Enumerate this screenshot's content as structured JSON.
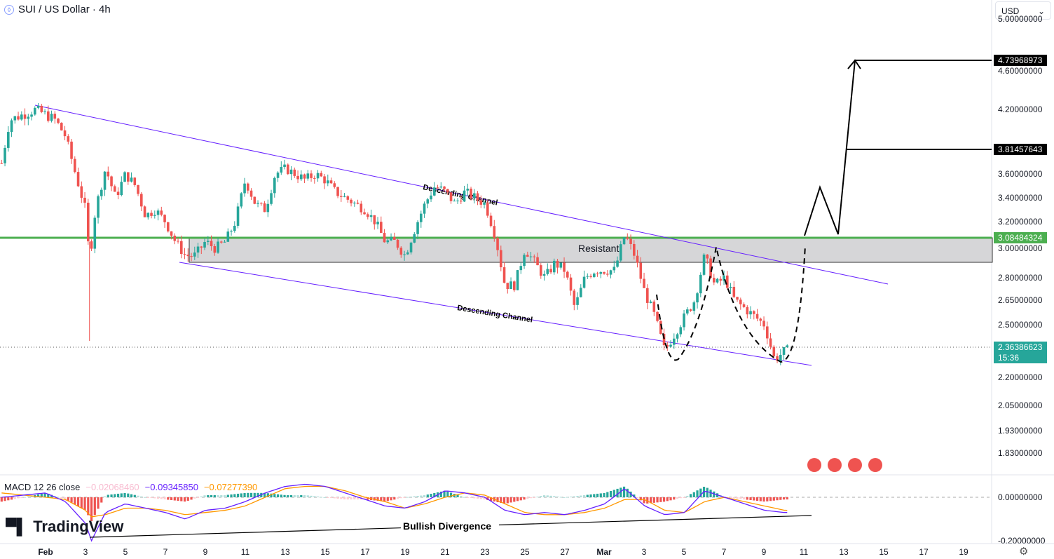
{
  "header": {
    "title": "SUI / US Dollar · 4h",
    "currency": "USD"
  },
  "price_axis": {
    "ticks": [
      5.0,
      4.6,
      4.2,
      3.6,
      3.4,
      3.2,
      3.0,
      2.8,
      2.65,
      2.5,
      2.2,
      2.05,
      1.93,
      1.83
    ],
    "tick_labels": [
      "5.00000000",
      "4.60000000",
      "4.20000000",
      "3.60000000",
      "3.40000000",
      "3.20000000",
      "3.00000000",
      "2.80000000",
      "2.65000000",
      "2.50000000",
      "2.20000000",
      "2.05000000",
      "1.93000000",
      "1.83000000"
    ],
    "target1": "4.73968973",
    "target2": "3.81457643",
    "resistance": "3.08484324",
    "last": "2.36386623",
    "countdown": "15:36"
  },
  "macd_axis": {
    "labels": [
      "0.00000000",
      "-0.20000000"
    ]
  },
  "time_axis": [
    "Feb",
    "3",
    "5",
    "7",
    "9",
    "11",
    "13",
    "15",
    "17",
    "19",
    "21",
    "23",
    "25",
    "27",
    "Mar",
    "3",
    "5",
    "7",
    "9",
    "11",
    "13",
    "15",
    "17",
    "19"
  ],
  "annotations": {
    "channel_top": "Descending Channel",
    "channel_bottom": "Descending Channel",
    "zone": "Resistant",
    "divergence": "Bullish Divergence"
  },
  "macd": {
    "label": "MACD 12 26 close",
    "hist": "−0.02068460",
    "macd": "−0.09345850",
    "signal": "−0.07277390"
  },
  "brand": "TradingView",
  "colors": {
    "up": "#26a69a",
    "down": "#ef5350",
    "macd": "#651fff",
    "signal": "#ff9800",
    "resist": "#4caf50"
  },
  "chart_data": {
    "type": "candlestick",
    "keypoints_day_price": [
      [
        -2.2,
        3.7
      ],
      [
        -1.8,
        4.1
      ],
      [
        -0.5,
        4.2
      ],
      [
        0.5,
        4.1
      ],
      [
        1,
        3.95
      ],
      [
        1.5,
        3.6
      ],
      [
        2,
        3.3
      ],
      [
        2.2,
        2.9
      ],
      [
        2.5,
        3.3
      ],
      [
        3,
        3.65
      ],
      [
        3.5,
        3.4
      ],
      [
        4,
        3.6
      ],
      [
        4.5,
        3.5
      ],
      [
        5,
        3.25
      ],
      [
        5.5,
        3.3
      ],
      [
        6,
        3.2
      ],
      [
        6.5,
        3.05
      ],
      [
        7,
        2.95
      ],
      [
        7.5,
        2.95
      ],
      [
        8,
        3.05
      ],
      [
        8.5,
        3.0
      ],
      [
        9,
        3.05
      ],
      [
        9.5,
        3.2
      ],
      [
        10,
        3.55
      ],
      [
        10.5,
        3.35
      ],
      [
        11,
        3.3
      ],
      [
        11.5,
        3.6
      ],
      [
        12,
        3.65
      ],
      [
        12.5,
        3.6
      ],
      [
        13,
        3.55
      ],
      [
        13.5,
        3.6
      ],
      [
        14,
        3.55
      ],
      [
        14.5,
        3.45
      ],
      [
        15,
        3.4
      ],
      [
        15.5,
        3.35
      ],
      [
        16,
        3.3
      ],
      [
        16.5,
        3.2
      ],
      [
        17,
        3.05
      ],
      [
        17.5,
        3.05
      ],
      [
        18,
        2.95
      ],
      [
        18.5,
        3.15
      ],
      [
        19,
        3.35
      ],
      [
        19.5,
        3.5
      ],
      [
        20,
        3.45
      ],
      [
        20.5,
        3.35
      ],
      [
        21,
        3.45
      ],
      [
        22,
        3.35
      ],
      [
        22.5,
        3.1
      ],
      [
        23,
        2.75
      ],
      [
        23.5,
        2.75
      ],
      [
        24,
        3.0
      ],
      [
        24.5,
        2.9
      ],
      [
        25,
        2.8
      ],
      [
        25.5,
        2.9
      ],
      [
        26,
        2.85
      ],
      [
        26.5,
        2.6
      ],
      [
        27,
        2.8
      ],
      [
        27.5,
        2.85
      ],
      [
        28,
        2.85
      ],
      [
        28.5,
        2.85
      ],
      [
        29,
        3.1
      ],
      [
        29.5,
        2.95
      ],
      [
        30,
        2.7
      ],
      [
        30.5,
        2.55
      ],
      [
        31,
        2.35
      ],
      [
        31.5,
        2.45
      ],
      [
        32,
        2.55
      ],
      [
        32.5,
        2.65
      ],
      [
        33,
        2.95
      ],
      [
        33.5,
        2.75
      ],
      [
        34,
        2.8
      ],
      [
        34.5,
        2.65
      ],
      [
        35,
        2.6
      ],
      [
        35.5,
        2.55
      ],
      [
        36,
        2.5
      ],
      [
        36.5,
        2.3
      ],
      [
        37,
        2.35
      ],
      [
        37.3,
        2.36
      ]
    ],
    "macd_keypoints": [
      [
        -2.2,
        0.0,
        0.02
      ],
      [
        0,
        0.02,
        0.0
      ],
      [
        1,
        -0.02,
        -0.01
      ],
      [
        2,
        -0.12,
        -0.06
      ],
      [
        2.3,
        -0.2,
        -0.09
      ],
      [
        3,
        -0.07,
        -0.08
      ],
      [
        4,
        -0.03,
        -0.05
      ],
      [
        5,
        -0.05,
        -0.05
      ],
      [
        6,
        -0.07,
        -0.06
      ],
      [
        7,
        -0.1,
        -0.08
      ],
      [
        8,
        -0.06,
        -0.07
      ],
      [
        9,
        -0.05,
        -0.06
      ],
      [
        10,
        -0.02,
        -0.04
      ],
      [
        11,
        0.02,
        0.0
      ],
      [
        12,
        0.05,
        0.04
      ],
      [
        13,
        0.06,
        0.05
      ],
      [
        14,
        0.05,
        0.05
      ],
      [
        15,
        0.02,
        0.03
      ],
      [
        16,
        -0.01,
        0.0
      ],
      [
        17,
        -0.04,
        -0.02
      ],
      [
        18,
        -0.05,
        -0.05
      ],
      [
        19,
        -0.02,
        -0.03
      ],
      [
        20,
        0.03,
        0.0
      ],
      [
        21,
        0.02,
        0.02
      ],
      [
        22,
        0.0,
        0.01
      ],
      [
        23,
        -0.06,
        -0.03
      ],
      [
        24,
        -0.08,
        -0.07
      ],
      [
        25,
        -0.07,
        -0.08
      ],
      [
        26,
        -0.08,
        -0.08
      ],
      [
        27,
        -0.06,
        -0.07
      ],
      [
        28,
        -0.03,
        -0.05
      ],
      [
        29,
        0.04,
        -0.01
      ],
      [
        30,
        -0.04,
        -0.01
      ],
      [
        31,
        -0.08,
        -0.06
      ],
      [
        32,
        -0.07,
        -0.07
      ],
      [
        33,
        0.03,
        -0.02
      ],
      [
        34,
        0.0,
        0.0
      ],
      [
        35,
        -0.03,
        -0.02
      ],
      [
        36,
        -0.06,
        -0.04
      ],
      [
        37,
        -0.07,
        -0.06
      ]
    ]
  }
}
